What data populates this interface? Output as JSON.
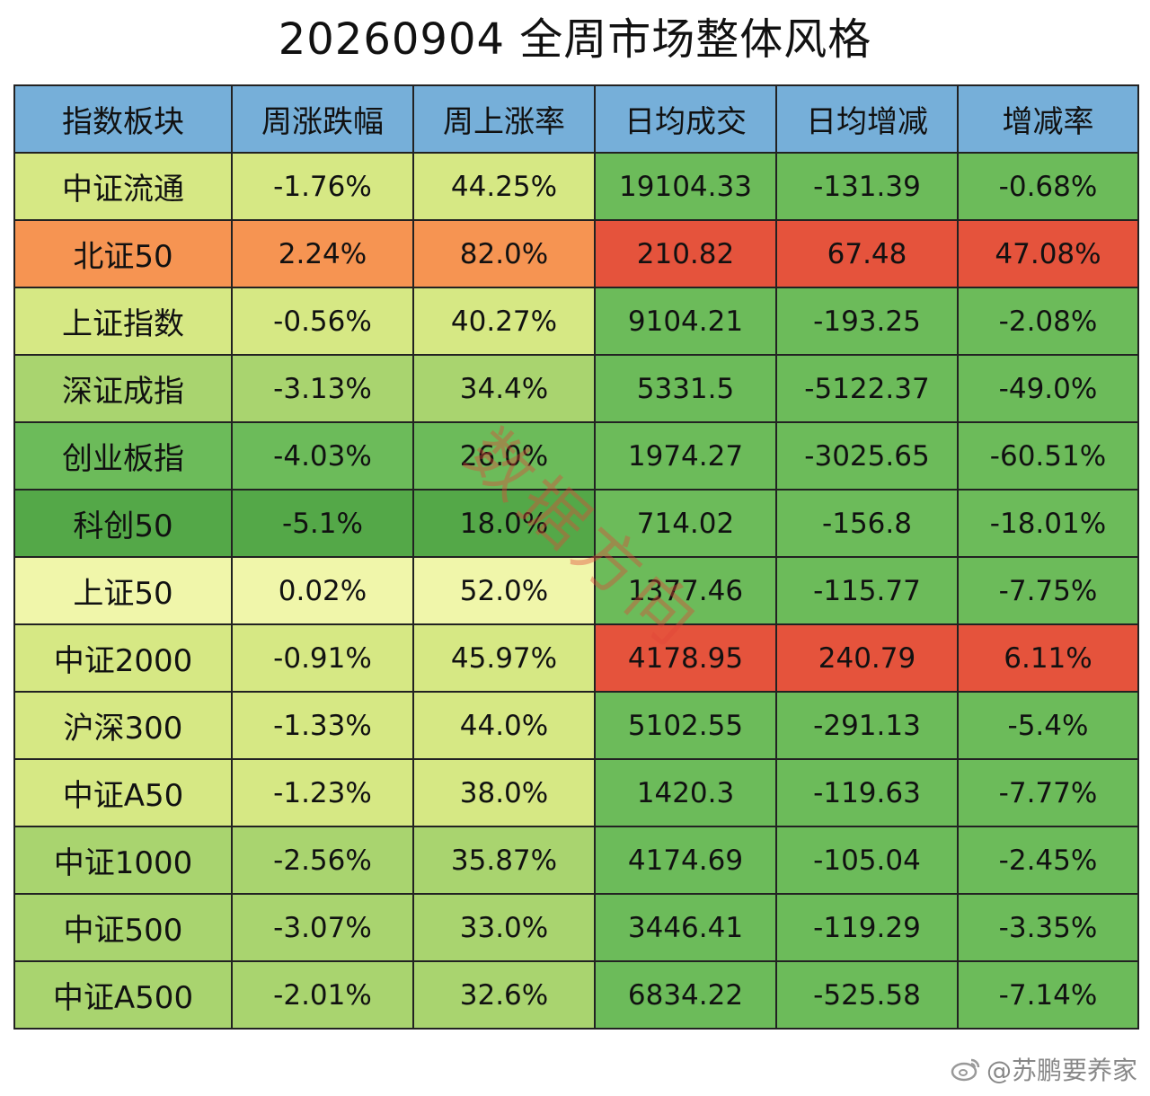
{
  "title": "20260904  全周市场整体风格",
  "watermark": "数据方向",
  "credit": "@苏鹏要养家",
  "colors": {
    "header": "#76afd9",
    "scale": {
      "light_yellow": "#f0f6aa",
      "yellow_green": "#d6e884",
      "light_green": "#a9d46f",
      "green": "#6cbb5a",
      "dark_green": "#54a848",
      "orange": "#f69452",
      "red": "#e5533c"
    }
  },
  "chart_data": {
    "type": "table",
    "title": "20260904  全周市场整体风格",
    "columns": [
      "指数板块",
      "周涨跌幅",
      "周上涨率",
      "日均成交",
      "日均增减",
      "增减率"
    ],
    "rows": [
      {
        "cells": [
          "中证流通",
          "-1.76%",
          "44.25%",
          "19104.33",
          "-131.39",
          "-0.68%"
        ],
        "colors": [
          "yellow_green",
          "yellow_green",
          "yellow_green",
          "green",
          "green",
          "green"
        ]
      },
      {
        "cells": [
          "北证50",
          "2.24%",
          "82.0%",
          "210.82",
          "67.48",
          "47.08%"
        ],
        "colors": [
          "orange",
          "orange",
          "orange",
          "red",
          "red",
          "red"
        ]
      },
      {
        "cells": [
          "上证指数",
          "-0.56%",
          "40.27%",
          "9104.21",
          "-193.25",
          "-2.08%"
        ],
        "colors": [
          "yellow_green",
          "yellow_green",
          "yellow_green",
          "green",
          "green",
          "green"
        ]
      },
      {
        "cells": [
          "深证成指",
          "-3.13%",
          "34.4%",
          "5331.5",
          "-5122.37",
          "-49.0%"
        ],
        "colors": [
          "light_green",
          "light_green",
          "light_green",
          "green",
          "green",
          "green"
        ]
      },
      {
        "cells": [
          "创业板指",
          "-4.03%",
          "26.0%",
          "1974.27",
          "-3025.65",
          "-60.51%"
        ],
        "colors": [
          "green",
          "green",
          "green",
          "green",
          "green",
          "green"
        ]
      },
      {
        "cells": [
          "科创50",
          "-5.1%",
          "18.0%",
          "714.02",
          "-156.8",
          "-18.01%"
        ],
        "colors": [
          "dark_green",
          "dark_green",
          "dark_green",
          "green",
          "green",
          "green"
        ]
      },
      {
        "cells": [
          "上证50",
          "0.02%",
          "52.0%",
          "1377.46",
          "-115.77",
          "-7.75%"
        ],
        "colors": [
          "light_yellow",
          "light_yellow",
          "light_yellow",
          "green",
          "green",
          "green"
        ]
      },
      {
        "cells": [
          "中证2000",
          "-0.91%",
          "45.97%",
          "4178.95",
          "240.79",
          "6.11%"
        ],
        "colors": [
          "yellow_green",
          "yellow_green",
          "yellow_green",
          "red",
          "red",
          "red"
        ]
      },
      {
        "cells": [
          "沪深300",
          "-1.33%",
          "44.0%",
          "5102.55",
          "-291.13",
          "-5.4%"
        ],
        "colors": [
          "yellow_green",
          "yellow_green",
          "yellow_green",
          "green",
          "green",
          "green"
        ]
      },
      {
        "cells": [
          "中证A50",
          "-1.23%",
          "38.0%",
          "1420.3",
          "-119.63",
          "-7.77%"
        ],
        "colors": [
          "yellow_green",
          "yellow_green",
          "yellow_green",
          "green",
          "green",
          "green"
        ]
      },
      {
        "cells": [
          "中证1000",
          "-2.56%",
          "35.87%",
          "4174.69",
          "-105.04",
          "-2.45%"
        ],
        "colors": [
          "light_green",
          "light_green",
          "light_green",
          "green",
          "green",
          "green"
        ]
      },
      {
        "cells": [
          "中证500",
          "-3.07%",
          "33.0%",
          "3446.41",
          "-119.29",
          "-3.35%"
        ],
        "colors": [
          "light_green",
          "light_green",
          "light_green",
          "green",
          "green",
          "green"
        ]
      },
      {
        "cells": [
          "中证A500",
          "-2.01%",
          "32.6%",
          "6834.22",
          "-525.58",
          "-7.14%"
        ],
        "colors": [
          "light_green",
          "light_green",
          "light_green",
          "green",
          "green",
          "green"
        ]
      }
    ]
  }
}
